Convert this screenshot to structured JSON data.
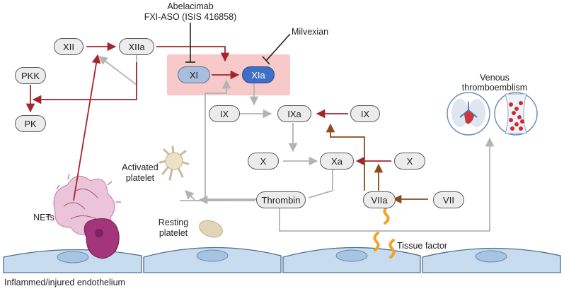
{
  "inhibitors": {
    "abelacimab": "Abelacimab",
    "fxi_aso": "FXI-ASO (ISIS 416858)",
    "milvexian": "Milvexian"
  },
  "factors": {
    "xii": "XII",
    "xiia": "XIIa",
    "pkk": "PKK",
    "pk": "PK",
    "xi": "XI",
    "xia": "XIa",
    "ix_left": "IX",
    "ixa": "IXa",
    "ix_right": "IX",
    "x_left": "X",
    "xa": "Xa",
    "x_right": "X",
    "thrombin": "Thrombin",
    "viia": "VIIa",
    "vii": "VII"
  },
  "labels": {
    "venous_line1": "Venous",
    "venous_line2": "thromboemblism",
    "activated_line1": "Activated",
    "activated_line2": "platelet",
    "resting_line1": "Resting",
    "resting_line2": "platelet",
    "nets": "NETs",
    "tissue_factor": "Tissue factor",
    "endothelium": "Inflammed/injured endothelium"
  },
  "colors": {
    "activation_arrow": "#a3262e",
    "tf_arrow": "#8b4a1c",
    "flow_arrow": "#b3b3b3",
    "highlight_box": "#f7c9c9",
    "factor_xi_fill": "#a9bedd",
    "factor_xia_fill": "#3f6fc6",
    "endothelium_fill": "#c8dcef",
    "tissue_factor_color": "#f0a424"
  }
}
